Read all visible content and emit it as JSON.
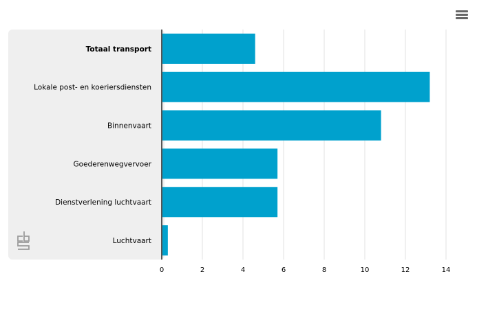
{
  "colors": {
    "bar": "#00a1cd",
    "label_panel": "#efefef",
    "grid": "#e1e1e1",
    "axis": "#555555",
    "text": "#000000",
    "logo": "#9b9b9b"
  },
  "icons": {
    "menu": "hamburger-menu-icon",
    "logo": "cbs-logo-icon"
  },
  "chart_data": {
    "type": "bar",
    "orientation": "horizontal",
    "categories": [
      "Totaal transport",
      "Lokale post- en koeriersdiensten",
      "Binnenvaart",
      "Goederenwegvervoer",
      "Dienstverlening luchtvaart",
      "Luchtvaart"
    ],
    "values": [
      4.6,
      13.2,
      10.8,
      5.7,
      5.7,
      0.3
    ],
    "bold_categories": [
      "Totaal transport"
    ],
    "xlim": [
      0,
      14
    ],
    "xticks": [
      0,
      2,
      4,
      6,
      8,
      10,
      12,
      14
    ],
    "grid": true,
    "legend": "none",
    "title": "",
    "xlabel": "",
    "ylabel": ""
  }
}
